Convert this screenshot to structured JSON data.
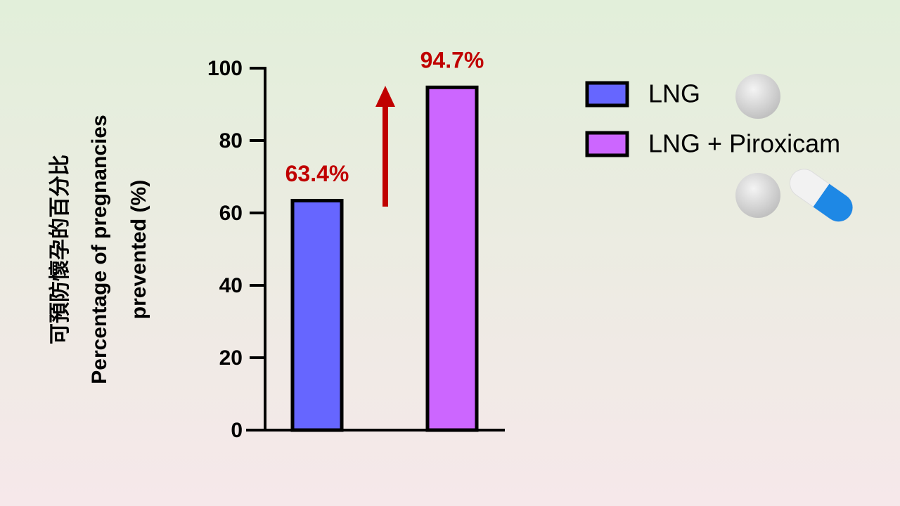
{
  "chart_data": {
    "type": "bar",
    "y_label": [
      "可預防懷孕的百分比",
      "Percentage of pregnancies",
      "prevented (%)"
    ],
    "categories": [
      null,
      null
    ],
    "series": [
      {
        "name": "LNG",
        "color": "#6666ff",
        "values": [
          63.4,
          null
        ],
        "value_labels": [
          "63.4%",
          null
        ]
      },
      {
        "name": "LNG + Piroxicam",
        "color": "#cc66ff",
        "values": [
          null,
          94.7
        ],
        "value_labels": [
          null,
          "94.7%"
        ]
      }
    ],
    "value_label_color": "#c00000",
    "ylim": [
      0,
      100
    ],
    "yticks": [
      0,
      20,
      40,
      60,
      80,
      100
    ]
  }
}
